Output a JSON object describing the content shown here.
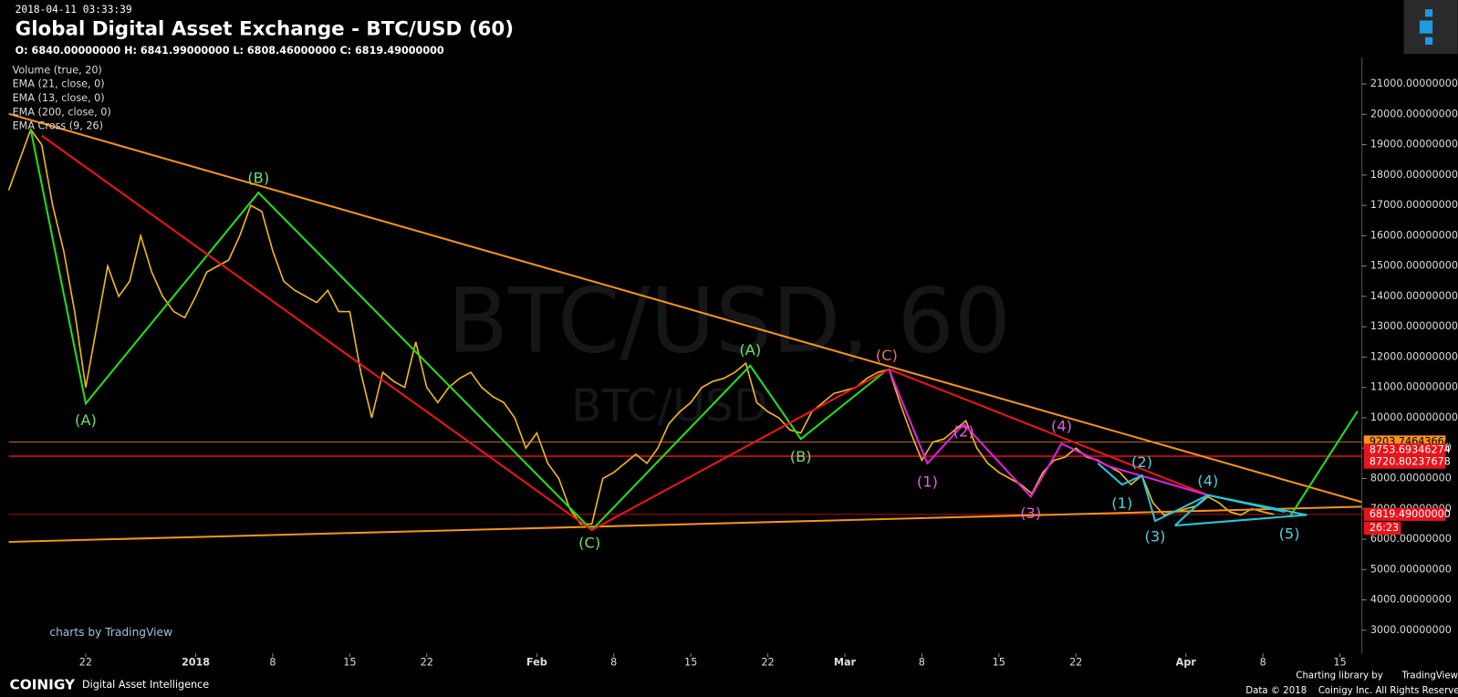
{
  "chart_data": {
    "type": "line",
    "timestamp": "2018-04-11 03:33:39",
    "title": "Global Digital Asset Exchange - BTC/USD (60)",
    "ohlc": "O: 6840.00000000 H: 6841.99000000 L: 6808.46000000 C: 6819.49000000",
    "indicators": [
      "Volume (true, 20)",
      "EMA (21, close, 0)",
      "EMA (13, close, 0)",
      "EMA (200, close, 0)",
      "EMA Cross (9, 26)"
    ],
    "watermark": "BTC/USD, 60",
    "watermark_sub": "BTC/USD",
    "color": "#f0b81c",
    "x": [
      0,
      1,
      2,
      3,
      4,
      5,
      6,
      7,
      8,
      9,
      10,
      11,
      12,
      13,
      14,
      15,
      16,
      17,
      18,
      19,
      20,
      21,
      22,
      23,
      24,
      25,
      26,
      27,
      28,
      29,
      30,
      31,
      32,
      33,
      34,
      35,
      36,
      37,
      38,
      39,
      40,
      41,
      42,
      43,
      44,
      45,
      46,
      47,
      48,
      49,
      50,
      51,
      52,
      53,
      54,
      55,
      56,
      57,
      58,
      59,
      60,
      61,
      62,
      63,
      64,
      65,
      66,
      67,
      68,
      69,
      70,
      71,
      72,
      73,
      74,
      75,
      76,
      77,
      78,
      79,
      80,
      81,
      82,
      83,
      84,
      85,
      86,
      87,
      88,
      89,
      90,
      91,
      92,
      93,
      94,
      95,
      96,
      97,
      98,
      99,
      100,
      101,
      102,
      103,
      104,
      105,
      106,
      107,
      108,
      109,
      110,
      111,
      112,
      113,
      114,
      115
    ],
    "values": [
      17500,
      18500,
      19500,
      19000,
      17000,
      15500,
      13500,
      11000,
      13000,
      15000,
      14000,
      14500,
      16000,
      14800,
      14000,
      13500,
      13300,
      14000,
      14800,
      15000,
      15200,
      16000,
      17000,
      16800,
      15500,
      14500,
      14200,
      14000,
      13800,
      14200,
      13500,
      13500,
      11500,
      10000,
      11500,
      11200,
      11000,
      12500,
      11000,
      10500,
      11000,
      11300,
      11500,
      11000,
      10700,
      10500,
      10000,
      9000,
      9500,
      8500,
      8000,
      7000,
      6500,
      6500,
      8000,
      8200,
      8500,
      8800,
      8500,
      9000,
      9800,
      10200,
      10500,
      11000,
      11200,
      11300,
      11500,
      11800,
      10500,
      10200,
      10000,
      9600,
      9500,
      10200,
      10500,
      10800,
      10900,
      11000,
      11300,
      11500,
      11600,
      10500,
      9500,
      8600,
      9200,
      9300,
      9600,
      9900,
      9000,
      8500,
      8200,
      8000,
      7800,
      7500,
      8200,
      8600,
      8700,
      9000,
      8700,
      8600,
      8400,
      8200,
      7800,
      8100,
      7200,
      6800,
      6900,
      7000,
      7100,
      7400,
      7200,
      6900,
      6800,
      7000,
      6900,
      6820
    ],
    "xlim": [
      0,
      123
    ],
    "xticks": [
      {
        "value": 7,
        "label": "22"
      },
      {
        "value": 17,
        "label": "2018"
      },
      {
        "value": 24,
        "label": "8"
      },
      {
        "value": 31,
        "label": "15"
      },
      {
        "value": 38,
        "label": "22"
      },
      {
        "value": 48,
        "label": "Feb"
      },
      {
        "value": 55,
        "label": "8"
      },
      {
        "value": 62,
        "label": "15"
      },
      {
        "value": 69,
        "label": "22"
      },
      {
        "value": 76,
        "label": "Mar"
      },
      {
        "value": 83,
        "label": "8"
      },
      {
        "value": 90,
        "label": "15"
      },
      {
        "value": 97,
        "label": "22"
      },
      {
        "value": 107,
        "label": "Apr"
      },
      {
        "value": 114,
        "label": "8"
      },
      {
        "value": 121,
        "label": "15"
      }
    ],
    "ylim": [
      2300,
      21900
    ],
    "yticks": [
      {
        "value": 3000,
        "label": "3000.00000000"
      },
      {
        "value": 4000,
        "label": "4000.00000000"
      },
      {
        "value": 5000,
        "label": "5000.00000000"
      },
      {
        "value": 6000,
        "label": "6000.00000000"
      },
      {
        "value": 7000,
        "label": "7000.00000000"
      },
      {
        "value": 8000,
        "label": "8000.00000000"
      },
      {
        "value": 9000,
        "label": "9000.00000000"
      },
      {
        "value": 10000,
        "label": "10000.00000000"
      },
      {
        "value": 11000,
        "label": "11000.00000000"
      },
      {
        "value": 12000,
        "label": "12000.00000000"
      },
      {
        "value": 13000,
        "label": "13000.00000000"
      },
      {
        "value": 14000,
        "label": "14000.00000000"
      },
      {
        "value": 15000,
        "label": "15000.00000000"
      },
      {
        "value": 16000,
        "label": "16000.00000000"
      },
      {
        "value": 17000,
        "label": "17000.00000000"
      },
      {
        "value": 18000,
        "label": "18000.00000000"
      },
      {
        "value": 19000,
        "label": "19000.00000000"
      },
      {
        "value": 20000,
        "label": "20000.00000000"
      },
      {
        "value": 21000,
        "label": "21000.00000000"
      }
    ],
    "price_labels": [
      {
        "value": 9203.74643664,
        "label": "9203.74643664",
        "color": "#f7931a"
      },
      {
        "value": 8753.69346274,
        "label": "8753.69346274",
        "color": "#e8141c"
      },
      {
        "value": 8720.80237678,
        "label": "8720.80237678",
        "color": "#e8141c"
      },
      {
        "value": 6819.49,
        "label": "6819.49000000",
        "color": "#e8141c"
      }
    ],
    "countdown": "26:23",
    "trendlines": [
      {
        "color": "#f7931a",
        "points": [
          [
            0,
            20020
          ],
          [
            123,
            7220
          ]
        ]
      },
      {
        "color": "#f7931a",
        "points": [
          [
            0,
            5910
          ],
          [
            123,
            7070
          ]
        ]
      },
      {
        "color": "#22e01c",
        "points": [
          [
            2,
            19500
          ],
          [
            7,
            10470
          ],
          [
            22.7,
            17420
          ],
          [
            53,
            6300
          ],
          [
            67.4,
            11720
          ],
          [
            72,
            9300
          ],
          [
            79.8,
            11570
          ]
        ]
      },
      {
        "color": "#22e01c",
        "points": [
          [
            116.5,
            6770
          ],
          [
            122.6,
            10220
          ]
        ]
      },
      {
        "color": "#f0141c",
        "points": [
          [
            3,
            19300
          ],
          [
            53,
            6300
          ],
          [
            80,
            11600
          ],
          [
            109,
            7450
          ]
        ]
      },
      {
        "color": "#e81ce0",
        "points": [
          [
            80,
            11600
          ],
          [
            83.5,
            8500
          ],
          [
            86.8,
            9800
          ],
          [
            92.9,
            7400
          ],
          [
            95.7,
            9150
          ],
          [
            100,
            8400
          ],
          [
            109,
            7450
          ]
        ]
      },
      {
        "color": "#26c6da",
        "points": [
          [
            99,
            8500
          ],
          [
            101.2,
            7800
          ],
          [
            103,
            8100
          ],
          [
            104.2,
            6600
          ],
          [
            109,
            7450
          ],
          [
            116,
            6900
          ]
        ]
      },
      {
        "color": "#26c6da",
        "points": [
          [
            106,
            6450
          ],
          [
            109,
            7450
          ],
          [
            118,
            6800
          ],
          [
            106,
            6450
          ]
        ]
      }
    ],
    "annotations": [
      {
        "text": "(A)",
        "x": 7,
        "y": 9890,
        "color": "#6ee06a"
      },
      {
        "text": "(B)",
        "x": 22.7,
        "y": 17880,
        "color": "#6ee06a"
      },
      {
        "text": "(C)",
        "x": 52.8,
        "y": 5850,
        "color": "#6ee06a"
      },
      {
        "text": "(A)",
        "x": 67.4,
        "y": 12210,
        "color": "#6ee06a"
      },
      {
        "text": "(B)",
        "x": 72,
        "y": 8690,
        "color": "#6ee06a"
      },
      {
        "text": "(C)",
        "x": 79.8,
        "y": 12030,
        "color": "#e8705a"
      },
      {
        "text": "(1)",
        "x": 83.5,
        "y": 7870,
        "color": "#e060e0"
      },
      {
        "text": "(2)",
        "x": 86.8,
        "y": 9520,
        "color": "#e060e0"
      },
      {
        "text": "(3)",
        "x": 92.9,
        "y": 6830,
        "color": "#e060e0"
      },
      {
        "text": "(4)",
        "x": 95.7,
        "y": 9700,
        "color": "#e060e0"
      },
      {
        "text": "(1)",
        "x": 101.2,
        "y": 7160,
        "color": "#4fd0e0"
      },
      {
        "text": "(2)",
        "x": 103,
        "y": 8510,
        "color": "#4fd0e0"
      },
      {
        "text": "(3)",
        "x": 104.2,
        "y": 6060,
        "color": "#4fd0e0"
      },
      {
        "text": "(4)",
        "x": 109,
        "y": 7900,
        "color": "#4fd0e0"
      },
      {
        "text": "(5)",
        "x": 116.4,
        "y": 6150,
        "color": "#4fd0e0"
      }
    ]
  },
  "footer": {
    "brand": "COINIGY",
    "tagline": "Digital Asset Intelligence",
    "charts_by": "charts by TradingView",
    "charting_library": "Charting library by",
    "tradingview": "TradingView",
    "data_copy": "Data © 2018",
    "rights": "Coinigy Inc. All Rights Reserved."
  }
}
